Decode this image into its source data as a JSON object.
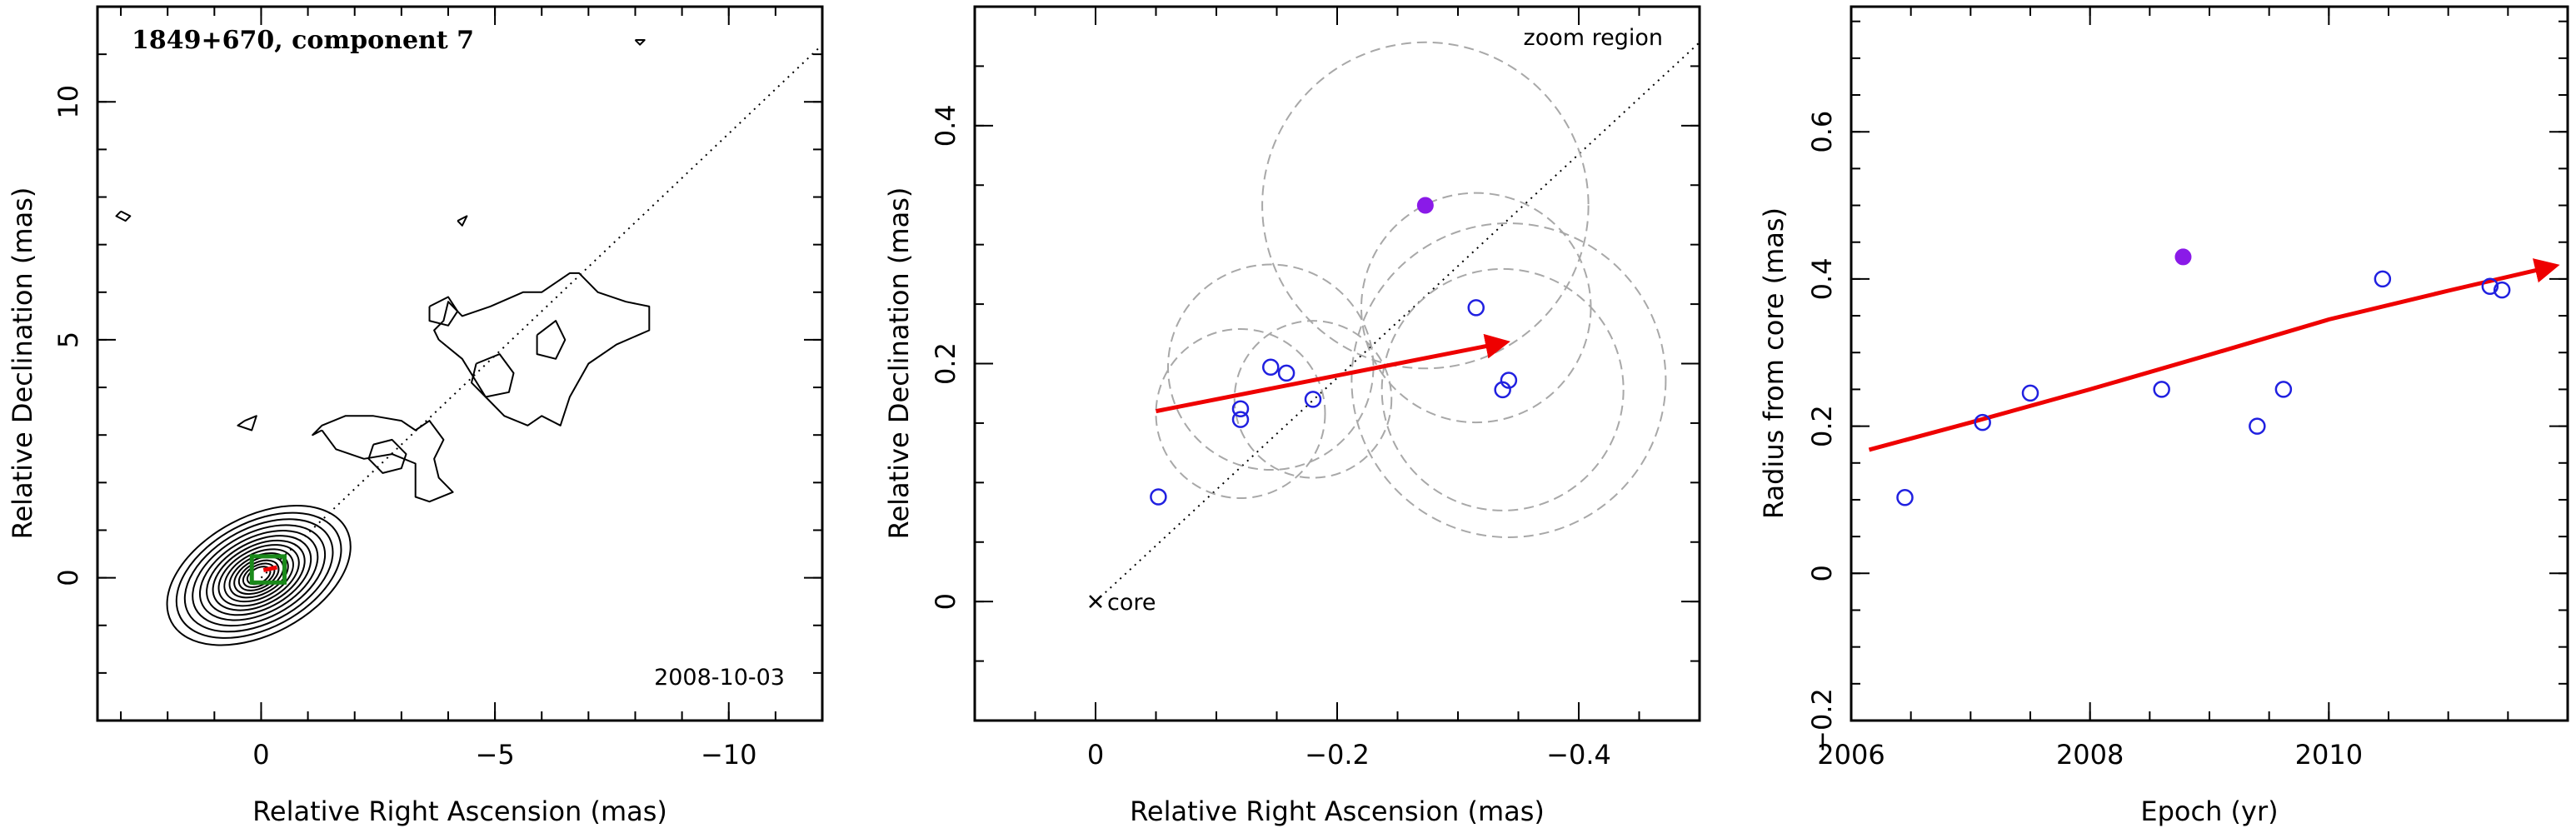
{
  "chart_data": [
    {
      "type": "contour",
      "title": "1849+670, component 7",
      "date_label": "2008-10-03",
      "xlabel": "Relative Right Ascension (mas)",
      "ylabel": "Relative Declination (mas)",
      "xlim": [
        3.5,
        -12
      ],
      "ylim": [
        -3,
        12
      ],
      "x_reversed": true,
      "xticks": [
        0,
        -5,
        -10
      ],
      "yticks": [
        0,
        5,
        10
      ],
      "xtick_labels": [
        "0",
        "−5",
        "−10"
      ],
      "ytick_labels": [
        "0",
        "5",
        "10"
      ],
      "jet_axis": {
        "x": [
          0,
          -12
        ],
        "y": [
          0,
          11.2
        ]
      },
      "zoom_box": {
        "x": [
          0.2,
          -0.5
        ],
        "y": [
          -0.1,
          0.45
        ]
      },
      "core_levels": [
        0.22,
        0.3,
        0.38,
        0.47,
        0.56,
        0.66,
        0.77,
        0.88,
        1.0,
        1.13,
        1.27,
        1.42,
        1.58,
        1.76
      ],
      "core_blob": {
        "x": 0.05,
        "y": 0.05,
        "rx": 1.3,
        "ry": 2.15,
        "rot_deg": 62
      },
      "jet_contours": [
        {
          "x": [
            -1.3,
            -1.6,
            -2.2,
            -2.8,
            -3.3,
            -3.3,
            -3.6,
            -4.1,
            -3.8,
            -3.7,
            -3.9,
            -3.6,
            -3.3,
            -3.0,
            -2.4,
            -1.8,
            -1.3,
            -1.1,
            -1.3
          ],
          "y": [
            3.1,
            2.7,
            2.5,
            2.6,
            2.4,
            1.7,
            1.6,
            1.8,
            2.1,
            2.5,
            2.9,
            3.3,
            3.1,
            3.3,
            3.4,
            3.4,
            3.2,
            3.0,
            3.1
          ]
        },
        {
          "x": [
            -2.4,
            -2.8,
            -3.1,
            -3.0,
            -2.6,
            -2.3,
            -2.4
          ],
          "y": [
            2.8,
            2.9,
            2.6,
            2.3,
            2.2,
            2.5,
            2.8
          ]
        },
        {
          "x": [
            -3.8,
            -4.3,
            -4.8,
            -5.2,
            -5.7,
            -6.0,
            -6.4,
            -6.6,
            -7.0,
            -7.6,
            -8.3,
            -8.3,
            -7.8,
            -7.2,
            -6.8,
            -6.6,
            -6.0,
            -5.6,
            -4.9,
            -4.3,
            -4.0,
            -3.9,
            -3.7,
            -3.8
          ],
          "y": [
            5.0,
            4.6,
            3.8,
            3.4,
            3.2,
            3.4,
            3.2,
            3.8,
            4.5,
            4.9,
            5.2,
            5.7,
            5.8,
            6.0,
            6.4,
            6.4,
            6.0,
            6.0,
            5.7,
            5.5,
            5.8,
            5.4,
            5.2,
            5.0
          ]
        },
        {
          "x": [
            -4.6,
            -5.1,
            -5.4,
            -5.3,
            -4.8,
            -4.5,
            -4.6
          ],
          "y": [
            4.5,
            4.7,
            4.3,
            3.9,
            3.8,
            4.1,
            4.5
          ]
        },
        {
          "x": [
            -5.9,
            -6.3,
            -6.5,
            -6.3,
            -5.9,
            -5.9
          ],
          "y": [
            5.1,
            5.4,
            5.0,
            4.6,
            4.7,
            5.1
          ]
        },
        {
          "x": [
            -3.6,
            -4.0,
            -4.2,
            -4.0,
            -3.6,
            -3.6
          ],
          "y": [
            5.7,
            5.9,
            5.6,
            5.3,
            5.4,
            5.7
          ]
        },
        {
          "x": [
            0.35,
            0.1,
            0.2,
            0.5,
            0.35
          ],
          "y": [
            3.3,
            3.4,
            3.1,
            3.2,
            3.3
          ]
        },
        {
          "x": [
            3.0,
            2.8,
            2.9,
            3.1,
            3.0
          ],
          "y": [
            7.7,
            7.6,
            7.5,
            7.6,
            7.7
          ]
        },
        {
          "x": [
            -8.0,
            -8.2,
            -8.1,
            -8.0
          ],
          "y": [
            11.3,
            11.3,
            11.2,
            11.3
          ]
        },
        {
          "x": [
            -4.2,
            -4.4,
            -4.3,
            -4.2
          ],
          "y": [
            7.5,
            7.6,
            7.4,
            7.5
          ]
        }
      ]
    },
    {
      "type": "scatter",
      "corner_label": "zoom region",
      "core_label": "core",
      "xlabel": "Relative Right Ascension (mas)",
      "ylabel": "Relative Declination (mas)",
      "xlim": [
        0.1,
        -0.5
      ],
      "ylim": [
        -0.1,
        0.5
      ],
      "x_reversed": true,
      "xticks": [
        0,
        -0.2,
        -0.4
      ],
      "yticks": [
        0,
        0.2,
        0.4
      ],
      "xtick_labels": [
        "0",
        "−0.2",
        "−0.4"
      ],
      "ytick_labels": [
        "0",
        "0.2",
        "0.4"
      ],
      "core": {
        "x": 0,
        "y": 0
      },
      "jet_axis": {
        "x": [
          0,
          -0.5
        ],
        "y": [
          0,
          0.47
        ]
      },
      "points": [
        {
          "x": -0.052,
          "y": 0.088
        },
        {
          "x": -0.12,
          "y": 0.162
        },
        {
          "x": -0.12,
          "y": 0.153
        },
        {
          "x": -0.145,
          "y": 0.197
        },
        {
          "x": -0.158,
          "y": 0.192
        },
        {
          "x": -0.18,
          "y": 0.17
        },
        {
          "x": -0.315,
          "y": 0.247
        },
        {
          "x": -0.337,
          "y": 0.178
        },
        {
          "x": -0.342,
          "y": 0.186
        }
      ],
      "outlier": {
        "x": -0.273,
        "y": 0.333
      },
      "error_circles": [
        {
          "x": -0.12,
          "y": 0.158,
          "r": 0.07
        },
        {
          "x": -0.145,
          "y": 0.197,
          "r": 0.085
        },
        {
          "x": -0.18,
          "y": 0.17,
          "r": 0.065
        },
        {
          "x": -0.273,
          "y": 0.333,
          "r": 0.135
        },
        {
          "x": -0.315,
          "y": 0.247,
          "r": 0.095
        },
        {
          "x": -0.337,
          "y": 0.178,
          "r": 0.1
        },
        {
          "x": -0.342,
          "y": 0.186,
          "r": 0.13
        }
      ],
      "fit_arrow": {
        "x": [
          -0.05,
          -0.34
        ],
        "y": [
          0.16,
          0.218
        ]
      }
    },
    {
      "type": "scatter",
      "xlabel": "Epoch (yr)",
      "ylabel": "Radius from core (mas)",
      "xlim": [
        2006,
        2012
      ],
      "ylim": [
        -0.2,
        0.77
      ],
      "xticks": [
        2006,
        2008,
        2010
      ],
      "yticks": [
        -0.2,
        0,
        0.2,
        0.4,
        0.6
      ],
      "xtick_labels": [
        "2006",
        "2008",
        "2010"
      ],
      "ytick_labels": [
        "−0.2",
        "0",
        "0.2",
        "0.4",
        "0.6"
      ],
      "points": [
        {
          "x": 2006.45,
          "y": 0.103
        },
        {
          "x": 2007.1,
          "y": 0.205
        },
        {
          "x": 2007.5,
          "y": 0.245
        },
        {
          "x": 2008.6,
          "y": 0.25
        },
        {
          "x": 2009.4,
          "y": 0.2
        },
        {
          "x": 2009.62,
          "y": 0.25
        },
        {
          "x": 2010.45,
          "y": 0.4
        },
        {
          "x": 2011.35,
          "y": 0.39
        },
        {
          "x": 2011.45,
          "y": 0.385
        }
      ],
      "outlier": {
        "x": 2008.78,
        "y": 0.43
      },
      "fit_curve": {
        "x": [
          2006.15,
          2007.0,
          2008.0,
          2009.0,
          2010.0,
          2011.0,
          2011.9
        ],
        "y": [
          0.168,
          0.205,
          0.25,
          0.297,
          0.345,
          0.384,
          0.418
        ]
      }
    }
  ]
}
